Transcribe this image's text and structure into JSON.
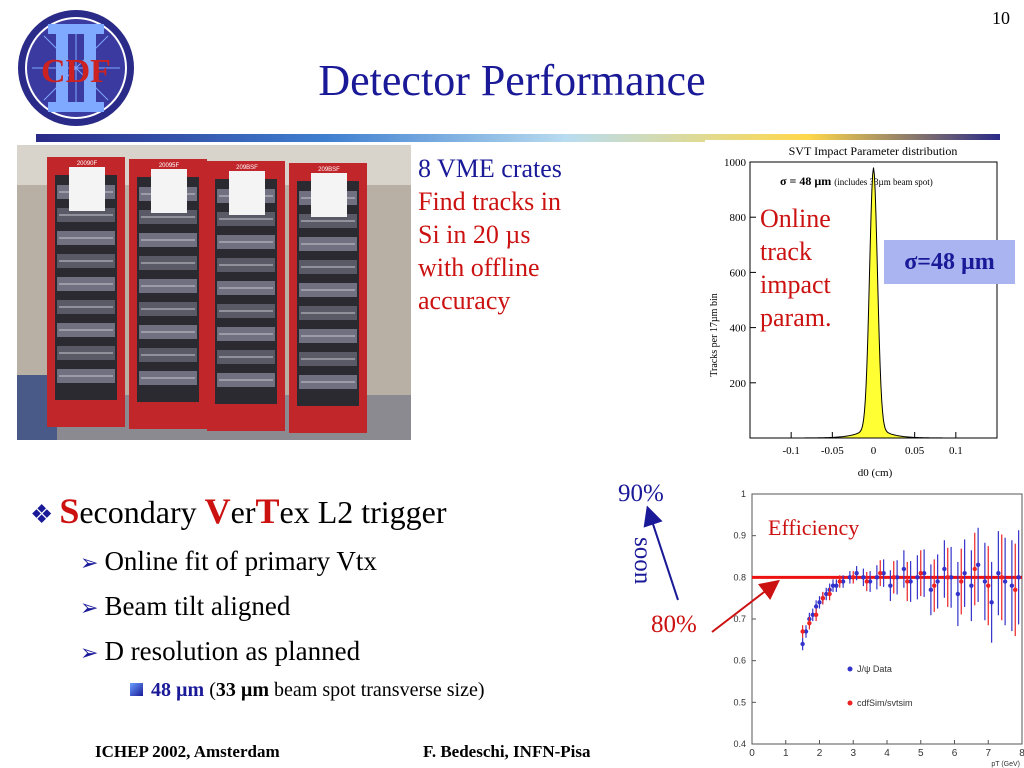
{
  "slide": {
    "number": "10",
    "title": "Detector Performance",
    "logo_text": "CDF"
  },
  "photo": {
    "crate_labels": [
      "20090F",
      "20095F",
      "209BSF",
      "209BSF"
    ]
  },
  "vme_text": {
    "line1": "8 VME crates",
    "line2": "Find tracks in",
    "line3": "Si in 20 µs",
    "line4": "with offline",
    "line5": "accuracy"
  },
  "annotations": {
    "online_line1": "Online",
    "online_line2": "track",
    "online_line3": "impact",
    "online_line4": "param.",
    "sigma_box": "σ=48 µm",
    "pct90": "90%",
    "pct80": "80%",
    "soon": "soon",
    "efficiency": "Efficiency"
  },
  "bullets": {
    "main_S": "S",
    "main_econdary": "econdary ",
    "main_V": "V",
    "main_er": "er",
    "main_T": "T",
    "main_rest": "ex L2 trigger",
    "sub1": "Online fit of primary Vtx",
    "sub2": "Beam tilt aligned",
    "sub3": "D resolution as planned",
    "subsub_blue": "48 µm",
    "subsub_open": " (",
    "subsub_bold": "33 µm",
    "subsub_rest": " beam spot transverse size)"
  },
  "footer": {
    "left": "ICHEP 2002, Amsterdam",
    "right": "F. Bedeschi, INFN-Pisa"
  },
  "chart_data": [
    {
      "type": "area",
      "title": "SVT Impact Parameter distribution",
      "annotation_sigma": "σ = 48 µm",
      "annotation_note": "(includes 33µm beam spot)",
      "xlabel": "d0 (cm)",
      "ylabel": "Tracks per 17µm bin",
      "xlim": [
        -0.15,
        0.15
      ],
      "ylim": [
        0,
        1000
      ],
      "x_ticks": [
        "-0.1",
        "-0.05",
        "0",
        "0.05",
        "0.1"
      ],
      "x_tick_values": [
        -0.1,
        -0.05,
        0,
        0.05,
        0.1
      ],
      "y_ticks": [
        "200",
        "400",
        "600",
        "800",
        "1000"
      ],
      "y_tick_values": [
        200,
        400,
        600,
        800,
        1000
      ],
      "fill_color": "#ffff33",
      "series": [
        {
          "mean": 0,
          "sigma": 0.0048,
          "peak": 920
        }
      ]
    },
    {
      "type": "scatter",
      "xlabel": "pT (GeV)",
      "ylim": [
        0.4,
        1.0
      ],
      "xlim": [
        0,
        8
      ],
      "y_ticks": [
        "0.4",
        "0.5",
        "0.6",
        "0.7",
        "0.8",
        "0.9",
        "1"
      ],
      "y_tick_values": [
        0.4,
        0.5,
        0.6,
        0.7,
        0.8,
        0.9,
        1.0
      ],
      "x_ticks": [
        "0",
        "1",
        "2",
        "3",
        "4",
        "5",
        "6",
        "7",
        "8"
      ],
      "x_tick_values": [
        0,
        1,
        2,
        3,
        4,
        5,
        6,
        7,
        8
      ],
      "reference_line": 0.8,
      "series": [
        {
          "name": "J/ψ Data",
          "color": "#3333cc",
          "x": [
            1.5,
            1.6,
            1.7,
            1.8,
            1.9,
            2.0,
            2.1,
            2.2,
            2.3,
            2.4,
            2.5,
            2.7,
            2.9,
            3.1,
            3.3,
            3.5,
            3.7,
            3.9,
            4.1,
            4.3,
            4.5,
            4.7,
            4.9,
            5.1,
            5.3,
            5.5,
            5.7,
            5.9,
            6.1,
            6.3,
            6.5,
            6.7,
            6.9,
            7.1,
            7.3,
            7.5,
            7.7,
            7.9
          ],
          "y": [
            0.64,
            0.67,
            0.7,
            0.71,
            0.73,
            0.74,
            0.75,
            0.76,
            0.77,
            0.78,
            0.78,
            0.79,
            0.8,
            0.81,
            0.8,
            0.79,
            0.8,
            0.81,
            0.78,
            0.8,
            0.82,
            0.79,
            0.8,
            0.81,
            0.77,
            0.79,
            0.82,
            0.8,
            0.76,
            0.81,
            0.78,
            0.83,
            0.79,
            0.74,
            0.81,
            0.79,
            0.78,
            0.8
          ]
        },
        {
          "name": "cdfSim/svtsim",
          "color": "#ee2222",
          "x": [
            1.5,
            1.7,
            1.9,
            2.1,
            2.3,
            2.6,
            3.0,
            3.4,
            3.8,
            4.2,
            4.6,
            5.0,
            5.4,
            5.8,
            6.2,
            6.6,
            7.0,
            7.4,
            7.8
          ],
          "y": [
            0.67,
            0.69,
            0.71,
            0.75,
            0.76,
            0.79,
            0.8,
            0.79,
            0.81,
            0.8,
            0.79,
            0.81,
            0.78,
            0.8,
            0.79,
            0.82,
            0.78,
            0.8,
            0.77
          ]
        }
      ]
    }
  ]
}
